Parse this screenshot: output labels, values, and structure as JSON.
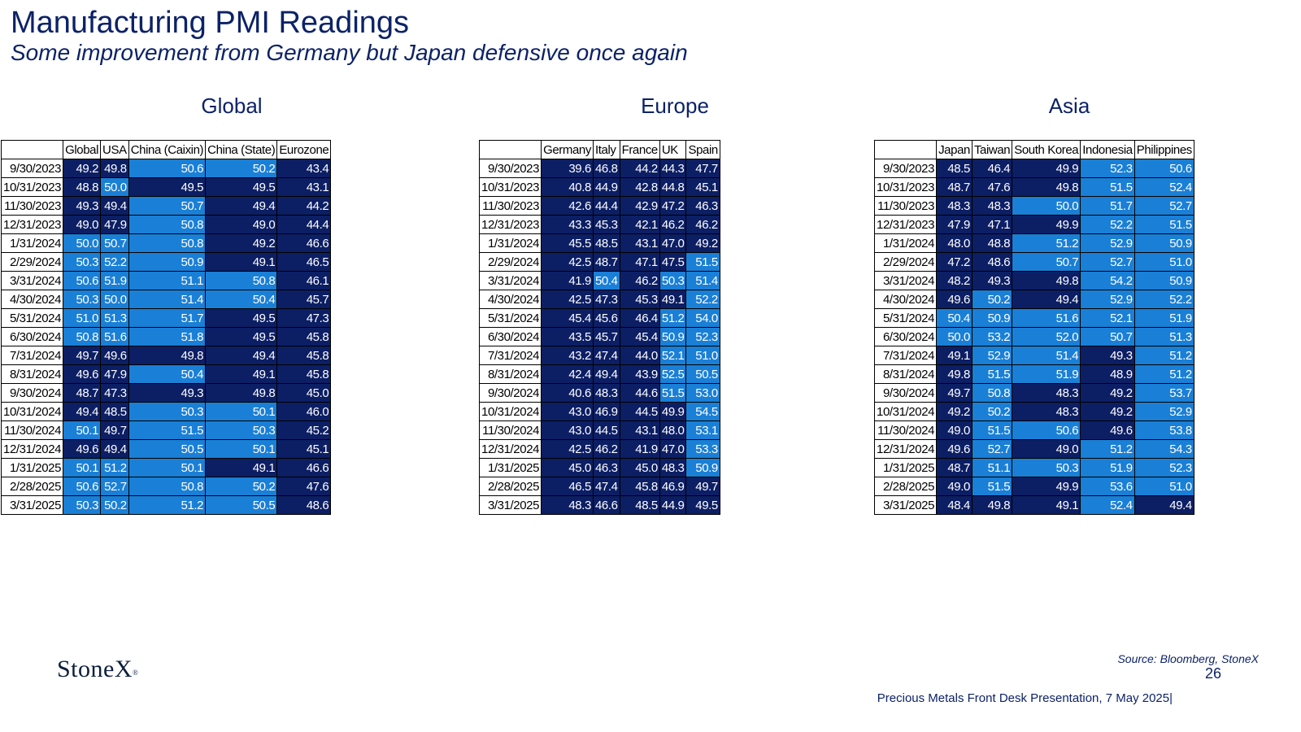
{
  "title": "Manufacturing PMI Readings",
  "subtitle": "Some improvement from Germany but Japan defensive once again",
  "colors": {
    "dark": "#0c1e64",
    "light": "#1a7fd6",
    "title": "#0c2268"
  },
  "dates": [
    "9/30/2023",
    "10/31/2023",
    "11/30/2023",
    "12/31/2023",
    "1/31/2024",
    "2/29/2024",
    "3/31/2024",
    "4/30/2024",
    "5/31/2024",
    "6/30/2024",
    "7/31/2024",
    "8/31/2024",
    "9/30/2024",
    "10/31/2024",
    "11/30/2024",
    "12/31/2024",
    "1/31/2025",
    "2/28/2025",
    "3/31/2025"
  ],
  "tables": [
    {
      "section": "Global",
      "columns": [
        "Global",
        "USA",
        "China (Caixin)",
        "China (State)",
        "Eurozone"
      ],
      "rows": [
        [
          "49.2",
          "49.8",
          "50.6",
          "50.2",
          "43.4"
        ],
        [
          "48.8",
          "50.0",
          "49.5",
          "49.5",
          "43.1"
        ],
        [
          "49.3",
          "49.4",
          "50.7",
          "49.4",
          "44.2"
        ],
        [
          "49.0",
          "47.9",
          "50.8",
          "49.0",
          "44.4"
        ],
        [
          "50.0",
          "50.7",
          "50.8",
          "49.2",
          "46.6"
        ],
        [
          "50.3",
          "52.2",
          "50.9",
          "49.1",
          "46.5"
        ],
        [
          "50.6",
          "51.9",
          "51.1",
          "50.8",
          "46.1"
        ],
        [
          "50.3",
          "50.0",
          "51.4",
          "50.4",
          "45.7"
        ],
        [
          "51.0",
          "51.3",
          "51.7",
          "49.5",
          "47.3"
        ],
        [
          "50.8",
          "51.6",
          "51.8",
          "49.5",
          "45.8"
        ],
        [
          "49.7",
          "49.6",
          "49.8",
          "49.4",
          "45.8"
        ],
        [
          "49.6",
          "47.9",
          "50.4",
          "49.1",
          "45.8"
        ],
        [
          "48.7",
          "47.3",
          "49.3",
          "49.8",
          "45.0"
        ],
        [
          "49.4",
          "48.5",
          "50.3",
          "50.1",
          "46.0"
        ],
        [
          "50.1",
          "49.7",
          "51.5",
          "50.3",
          "45.2"
        ],
        [
          "49.6",
          "49.4",
          "50.5",
          "50.1",
          "45.1"
        ],
        [
          "50.1",
          "51.2",
          "50.1",
          "49.1",
          "46.6"
        ],
        [
          "50.6",
          "52.7",
          "50.8",
          "50.2",
          "47.6"
        ],
        [
          "50.3",
          "50.2",
          "51.2",
          "50.5",
          "48.6"
        ]
      ]
    },
    {
      "section": "Europe",
      "columns": [
        "Germany",
        "Italy",
        "France",
        "UK",
        "Spain"
      ],
      "rows": [
        [
          "39.6",
          "46.8",
          "44.2",
          "44.3",
          "47.7"
        ],
        [
          "40.8",
          "44.9",
          "42.8",
          "44.8",
          "45.1"
        ],
        [
          "42.6",
          "44.4",
          "42.9",
          "47.2",
          "46.3"
        ],
        [
          "43.3",
          "45.3",
          "42.1",
          "46.2",
          "46.2"
        ],
        [
          "45.5",
          "48.5",
          "43.1",
          "47.0",
          "49.2"
        ],
        [
          "42.5",
          "48.7",
          "47.1",
          "47.5",
          "51.5"
        ],
        [
          "41.9",
          "50.4",
          "46.2",
          "50.3",
          "51.4"
        ],
        [
          "42.5",
          "47.3",
          "45.3",
          "49.1",
          "52.2"
        ],
        [
          "45.4",
          "45.6",
          "46.4",
          "51.2",
          "54.0"
        ],
        [
          "43.5",
          "45.7",
          "45.4",
          "50.9",
          "52.3"
        ],
        [
          "43.2",
          "47.4",
          "44.0",
          "52.1",
          "51.0"
        ],
        [
          "42.4",
          "49.4",
          "43.9",
          "52.5",
          "50.5"
        ],
        [
          "40.6",
          "48.3",
          "44.6",
          "51.5",
          "53.0"
        ],
        [
          "43.0",
          "46.9",
          "44.5",
          "49.9",
          "54.5"
        ],
        [
          "43.0",
          "44.5",
          "43.1",
          "48.0",
          "53.1"
        ],
        [
          "42.5",
          "46.2",
          "41.9",
          "47.0",
          "53.3"
        ],
        [
          "45.0",
          "46.3",
          "45.0",
          "48.3",
          "50.9"
        ],
        [
          "46.5",
          "47.4",
          "45.8",
          "46.9",
          "49.7"
        ],
        [
          "48.3",
          "46.6",
          "48.5",
          "44.9",
          "49.5"
        ]
      ]
    },
    {
      "section": "Asia",
      "columns": [
        "Japan",
        "Taiwan",
        "South Korea",
        "Indonesia",
        "Philippines"
      ],
      "rows": [
        [
          "48.5",
          "46.4",
          "49.9",
          "52.3",
          "50.6"
        ],
        [
          "48.7",
          "47.6",
          "49.8",
          "51.5",
          "52.4"
        ],
        [
          "48.3",
          "48.3",
          "50.0",
          "51.7",
          "52.7"
        ],
        [
          "47.9",
          "47.1",
          "49.9",
          "52.2",
          "51.5"
        ],
        [
          "48.0",
          "48.8",
          "51.2",
          "52.9",
          "50.9"
        ],
        [
          "47.2",
          "48.6",
          "50.7",
          "52.7",
          "51.0"
        ],
        [
          "48.2",
          "49.3",
          "49.8",
          "54.2",
          "50.9"
        ],
        [
          "49.6",
          "50.2",
          "49.4",
          "52.9",
          "52.2"
        ],
        [
          "50.4",
          "50.9",
          "51.6",
          "52.1",
          "51.9"
        ],
        [
          "50.0",
          "53.2",
          "52.0",
          "50.7",
          "51.3"
        ],
        [
          "49.1",
          "52.9",
          "51.4",
          "49.3",
          "51.2"
        ],
        [
          "49.8",
          "51.5",
          "51.9",
          "48.9",
          "51.2"
        ],
        [
          "49.7",
          "50.8",
          "48.3",
          "49.2",
          "53.7"
        ],
        [
          "49.2",
          "50.2",
          "48.3",
          "49.2",
          "52.9"
        ],
        [
          "49.0",
          "51.5",
          "50.6",
          "49.6",
          "53.8"
        ],
        [
          "49.6",
          "52.7",
          "49.0",
          "51.2",
          "54.3"
        ],
        [
          "48.7",
          "51.1",
          "50.3",
          "51.9",
          "52.3"
        ],
        [
          "49.0",
          "51.5",
          "49.9",
          "53.6",
          "51.0"
        ],
        [
          "48.4",
          "49.8",
          "49.1",
          "52.4",
          "49.4"
        ]
      ]
    }
  ],
  "logo": "StoneX",
  "source": "Source: Bloomberg, StoneX",
  "page_number": "26",
  "footer": "Precious Metals Front Desk Presentation, 7 May 2025|"
}
